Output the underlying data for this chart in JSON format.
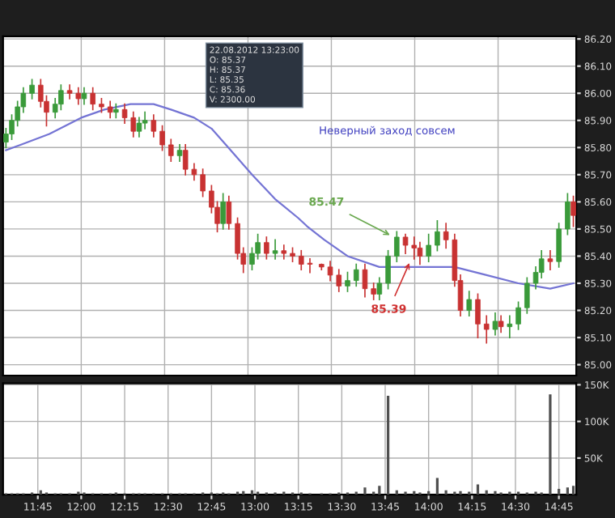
{
  "chart_data": [
    {
      "type": "candlestick",
      "x": [
        "2012-08-22T11:34",
        "2012-08-22T11:36",
        "2012-08-22T11:38",
        "2012-08-22T11:40",
        "2012-08-22T11:43",
        "2012-08-22T11:46",
        "2012-08-22T11:48",
        "2012-08-22T11:51",
        "2012-08-22T11:53",
        "2012-08-22T11:56",
        "2012-08-22T11:59",
        "2012-08-22T12:01",
        "2012-08-22T12:04",
        "2012-08-22T12:07",
        "2012-08-22T12:10",
        "2012-08-22T12:12",
        "2012-08-22T12:15",
        "2012-08-22T12:18",
        "2012-08-22T12:20",
        "2012-08-22T12:22",
        "2012-08-22T12:25",
        "2012-08-22T12:28",
        "2012-08-22T12:31",
        "2012-08-22T12:34",
        "2012-08-22T12:36",
        "2012-08-22T12:39",
        "2012-08-22T12:42",
        "2012-08-22T12:45",
        "2012-08-22T12:47",
        "2012-08-22T12:49",
        "2012-08-22T12:51",
        "2012-08-22T12:54",
        "2012-08-22T12:56",
        "2012-08-22T12:59",
        "2012-08-22T13:01",
        "2012-08-22T13:04",
        "2012-08-22T13:07",
        "2012-08-22T13:10",
        "2012-08-22T13:13",
        "2012-08-22T13:16",
        "2012-08-22T13:19",
        "2012-08-22T13:23",
        "2012-08-22T13:26",
        "2012-08-22T13:29",
        "2012-08-22T13:32",
        "2012-08-22T13:35",
        "2012-08-22T13:38",
        "2012-08-22T13:41",
        "2012-08-22T13:43",
        "2012-08-22T13:46",
        "2012-08-22T13:49",
        "2012-08-22T13:52",
        "2012-08-22T13:55",
        "2012-08-22T13:57",
        "2012-08-22T14:00",
        "2012-08-22T14:03",
        "2012-08-22T14:06",
        "2012-08-22T14:09",
        "2012-08-22T14:11",
        "2012-08-22T14:14",
        "2012-08-22T14:17",
        "2012-08-22T14:20",
        "2012-08-22T14:23",
        "2012-08-22T14:25",
        "2012-08-22T14:28",
        "2012-08-22T14:31",
        "2012-08-22T14:34",
        "2012-08-22T14:37",
        "2012-08-22T14:39",
        "2012-08-22T14:42",
        "2012-08-22T14:45",
        "2012-08-22T14:48",
        "2012-08-22T14:50"
      ],
      "ohlc": [
        [
          85.82,
          85.87,
          85.8,
          85.85
        ],
        [
          85.85,
          85.92,
          85.83,
          85.9
        ],
        [
          85.9,
          85.97,
          85.88,
          85.95
        ],
        [
          85.95,
          86.02,
          85.93,
          86.0
        ],
        [
          86.0,
          86.05,
          85.98,
          86.03
        ],
        [
          86.03,
          86.05,
          85.95,
          85.97
        ],
        [
          85.97,
          85.99,
          85.88,
          85.93
        ],
        [
          85.93,
          85.98,
          85.91,
          85.96
        ],
        [
          85.96,
          86.03,
          85.94,
          86.01
        ],
        [
          86.01,
          86.03,
          85.98,
          86.0
        ],
        [
          86.0,
          86.02,
          85.96,
          85.98
        ],
        [
          85.98,
          86.02,
          85.96,
          86.0
        ],
        [
          86.0,
          86.02,
          85.94,
          85.96
        ],
        [
          85.96,
          85.98,
          85.93,
          85.95
        ],
        [
          85.95,
          85.97,
          85.91,
          85.93
        ],
        [
          85.93,
          85.96,
          85.91,
          85.94
        ],
        [
          85.94,
          85.96,
          85.89,
          85.91
        ],
        [
          85.91,
          85.93,
          85.84,
          85.86
        ],
        [
          85.86,
          85.91,
          85.84,
          85.89
        ],
        [
          85.89,
          85.93,
          85.87,
          85.9
        ],
        [
          85.9,
          85.92,
          85.84,
          85.86
        ],
        [
          85.86,
          85.88,
          85.79,
          85.81
        ],
        [
          85.81,
          85.83,
          85.75,
          85.77
        ],
        [
          85.77,
          85.81,
          85.75,
          85.79
        ],
        [
          85.79,
          85.81,
          85.7,
          85.72
        ],
        [
          85.72,
          85.74,
          85.68,
          85.7
        ],
        [
          85.7,
          85.72,
          85.62,
          85.64
        ],
        [
          85.64,
          85.66,
          85.56,
          85.58
        ],
        [
          85.58,
          85.6,
          85.49,
          85.52
        ],
        [
          85.52,
          85.63,
          85.5,
          85.6
        ],
        [
          85.6,
          85.62,
          85.5,
          85.52
        ],
        [
          85.52,
          85.54,
          85.39,
          85.41
        ],
        [
          85.41,
          85.43,
          85.34,
          85.37
        ],
        [
          85.37,
          85.43,
          85.35,
          85.41
        ],
        [
          85.41,
          85.48,
          85.39,
          85.45
        ],
        [
          85.45,
          85.47,
          85.39,
          85.41
        ],
        [
          85.41,
          85.46,
          85.39,
          85.42
        ],
        [
          85.42,
          85.44,
          85.39,
          85.41
        ],
        [
          85.41,
          85.43,
          85.38,
          85.4
        ],
        [
          85.4,
          85.42,
          85.35,
          85.37
        ],
        [
          85.37,
          85.39,
          85.34,
          85.37
        ],
        [
          85.37,
          85.37,
          85.35,
          85.36
        ],
        [
          85.36,
          85.38,
          85.31,
          85.33
        ],
        [
          85.33,
          85.35,
          85.27,
          85.29
        ],
        [
          85.29,
          85.34,
          85.27,
          85.31
        ],
        [
          85.31,
          85.37,
          85.29,
          85.35
        ],
        [
          85.35,
          85.37,
          85.25,
          85.28
        ],
        [
          85.28,
          85.3,
          85.24,
          85.26
        ],
        [
          85.26,
          85.32,
          85.24,
          85.3
        ],
        [
          85.3,
          85.42,
          85.28,
          85.4
        ],
        [
          85.4,
          85.49,
          85.38,
          85.47
        ],
        [
          85.47,
          85.48,
          85.41,
          85.44
        ],
        [
          85.44,
          85.47,
          85.39,
          85.43
        ],
        [
          85.43,
          85.45,
          85.37,
          85.4
        ],
        [
          85.4,
          85.48,
          85.38,
          85.44
        ],
        [
          85.44,
          85.53,
          85.42,
          85.49
        ],
        [
          85.49,
          85.52,
          85.43,
          85.46
        ],
        [
          85.46,
          85.48,
          85.29,
          85.31
        ],
        [
          85.31,
          85.33,
          85.18,
          85.2
        ],
        [
          85.2,
          85.27,
          85.18,
          85.24
        ],
        [
          85.24,
          85.26,
          85.1,
          85.15
        ],
        [
          85.15,
          85.18,
          85.08,
          85.13
        ],
        [
          85.13,
          85.19,
          85.11,
          85.16
        ],
        [
          85.16,
          85.18,
          85.12,
          85.14
        ],
        [
          85.14,
          85.18,
          85.1,
          85.15
        ],
        [
          85.15,
          85.23,
          85.13,
          85.21
        ],
        [
          85.21,
          85.32,
          85.19,
          85.3
        ],
        [
          85.3,
          85.36,
          85.28,
          85.34
        ],
        [
          85.34,
          85.42,
          85.32,
          85.39
        ],
        [
          85.39,
          85.42,
          85.35,
          85.38
        ],
        [
          85.38,
          85.52,
          85.36,
          85.5
        ],
        [
          85.5,
          85.63,
          85.48,
          85.6
        ],
        [
          85.6,
          85.62,
          85.51,
          85.55
        ]
      ],
      "colors": [
        "#3a9a3a",
        "#3a9a3a",
        "#3a9a3a",
        "#3a9a3a",
        "#3a9a3a",
        "#c83232",
        "#c83232",
        "#3a9a3a",
        "#3a9a3a",
        "#c83232",
        "#c83232",
        "#3a9a3a",
        "#c83232",
        "#c83232",
        "#c83232",
        "#3a9a3a",
        "#c83232",
        "#c83232",
        "#3a9a3a",
        "#3a9a3a",
        "#c83232",
        "#c83232",
        "#c83232",
        "#3a9a3a",
        "#c83232",
        "#c83232",
        "#c83232",
        "#c83232",
        "#c83232",
        "#3a9a3a",
        "#c83232",
        "#c83232",
        "#c83232",
        "#3a9a3a",
        "#3a9a3a",
        "#c83232",
        "#3a9a3a",
        "#c83232",
        "#c83232",
        "#c83232",
        "#c83232",
        "#c83232",
        "#c83232",
        "#c83232",
        "#3a9a3a",
        "#3a9a3a",
        "#c83232",
        "#c83232",
        "#3a9a3a",
        "#3a9a3a",
        "#3a9a3a",
        "#c83232",
        "#c83232",
        "#c83232",
        "#3a9a3a",
        "#3a9a3a",
        "#c83232",
        "#c83232",
        "#c83232",
        "#3a9a3a",
        "#c83232",
        "#c83232",
        "#3a9a3a",
        "#c83232",
        "#3a9a3a",
        "#3a9a3a",
        "#3a9a3a",
        "#3a9a3a",
        "#3a9a3a",
        "#c83232",
        "#3a9a3a",
        "#3a9a3a",
        "#c83232"
      ],
      "series": [
        {
          "type": "line",
          "color": "#7474d4",
          "x": [
            "2012-08-22T11:34",
            "2012-08-22T11:39",
            "2012-08-22T11:49",
            "2012-08-22T12:00",
            "2012-08-22T12:08",
            "2012-08-22T12:17",
            "2012-08-22T12:25",
            "2012-08-22T12:31",
            "2012-08-22T12:39",
            "2012-08-22T12:45",
            "2012-08-22T12:50",
            "2012-08-22T12:59",
            "2012-08-22T13:07",
            "2012-08-22T13:15",
            "2012-08-22T13:18",
            "2012-08-22T13:24",
            "2012-08-22T13:32",
            "2012-08-22T13:43",
            "2012-08-22T13:55",
            "2012-08-22T14:09",
            "2012-08-22T14:20",
            "2012-08-22T14:31",
            "2012-08-22T14:42",
            "2012-08-22T14:50"
          ],
          "values": [
            85.79,
            85.81,
            85.85,
            85.91,
            85.94,
            85.96,
            85.96,
            85.94,
            85.91,
            85.87,
            85.81,
            85.7,
            85.61,
            85.54,
            85.51,
            85.46,
            85.4,
            85.36,
            85.36,
            85.36,
            85.33,
            85.3,
            85.28,
            85.3
          ]
        }
      ],
      "xlim": [
        "2012-08-22T11:33",
        "2012-08-22T14:51"
      ],
      "ylim": [
        84.96,
        86.21
      ],
      "yticks": [
        {
          "value": 85.0,
          "label": "85.00"
        },
        {
          "value": 85.1,
          "label": "85.10"
        },
        {
          "value": 85.2,
          "label": "85.20"
        },
        {
          "value": 85.3,
          "label": "85.30"
        },
        {
          "value": 85.4,
          "label": "85.40"
        },
        {
          "value": 85.5,
          "label": "85.50"
        },
        {
          "value": 85.6,
          "label": "85.60"
        },
        {
          "value": 85.7,
          "label": "85.70"
        },
        {
          "value": 85.8,
          "label": "85.80"
        },
        {
          "value": 85.9,
          "label": "85.90"
        },
        {
          "value": 86.0,
          "label": "86.00"
        },
        {
          "value": 86.1,
          "label": "86.10"
        },
        {
          "value": 86.2,
          "label": "86.20"
        }
      ],
      "tick_labels": "y",
      "grid": true,
      "annotations": [
        "22.08.2012 13:23:00",
        "O: 85.37",
        "H: 85.37",
        "L: 85.35",
        "C: 85.36",
        "V: 2300.00",
        {
          "text": "85.47",
          "x": "2012-08-22T13:48",
          "y": 85.47
        },
        {
          "text": "85.39",
          "x": "2012-08-22T13:54",
          "y": 85.39
        },
        "Неверный заход совсем"
      ]
    },
    {
      "type": "bar",
      "x": [
        "2012-08-22T11:34",
        "2012-08-22T11:36",
        "2012-08-22T11:38",
        "2012-08-22T11:40",
        "2012-08-22T11:43",
        "2012-08-22T11:46",
        "2012-08-22T11:48",
        "2012-08-22T11:51",
        "2012-08-22T11:53",
        "2012-08-22T11:56",
        "2012-08-22T11:59",
        "2012-08-22T12:01",
        "2012-08-22T12:04",
        "2012-08-22T12:07",
        "2012-08-22T12:10",
        "2012-08-22T12:12",
        "2012-08-22T12:15",
        "2012-08-22T12:18",
        "2012-08-22T12:20",
        "2012-08-22T12:22",
        "2012-08-22T12:25",
        "2012-08-22T12:28",
        "2012-08-22T12:31",
        "2012-08-22T12:34",
        "2012-08-22T12:36",
        "2012-08-22T12:39",
        "2012-08-22T12:42",
        "2012-08-22T12:45",
        "2012-08-22T12:47",
        "2012-08-22T12:49",
        "2012-08-22T12:51",
        "2012-08-22T12:54",
        "2012-08-22T12:56",
        "2012-08-22T12:59",
        "2012-08-22T13:01",
        "2012-08-22T13:04",
        "2012-08-22T13:07",
        "2012-08-22T13:10",
        "2012-08-22T13:13",
        "2012-08-22T13:16",
        "2012-08-22T13:19",
        "2012-08-22T13:23",
        "2012-08-22T13:26",
        "2012-08-22T13:29",
        "2012-08-22T13:32",
        "2012-08-22T13:35",
        "2012-08-22T13:38",
        "2012-08-22T13:41",
        "2012-08-22T13:43",
        "2012-08-22T13:46",
        "2012-08-22T13:49",
        "2012-08-22T13:52",
        "2012-08-22T13:55",
        "2012-08-22T13:57",
        "2012-08-22T14:00",
        "2012-08-22T14:03",
        "2012-08-22T14:06",
        "2012-08-22T14:09",
        "2012-08-22T14:11",
        "2012-08-22T14:14",
        "2012-08-22T14:17",
        "2012-08-22T14:20",
        "2012-08-22T14:23",
        "2012-08-22T14:25",
        "2012-08-22T14:28",
        "2012-08-22T14:31",
        "2012-08-22T14:34",
        "2012-08-22T14:37",
        "2012-08-22T14:39",
        "2012-08-22T14:42",
        "2012-08-22T14:45",
        "2012-08-22T14:48",
        "2012-08-22T14:50"
      ],
      "values": [
        2,
        2,
        2,
        2,
        3,
        6,
        3,
        2,
        2,
        2,
        4,
        3,
        2,
        2,
        2,
        3,
        2,
        2,
        2,
        2,
        2,
        2,
        2,
        2,
        2,
        2,
        3,
        3,
        2,
        3,
        2,
        4,
        5,
        6,
        4,
        3,
        3,
        4,
        3,
        3,
        2,
        2,
        2,
        3,
        3,
        4,
        10,
        4,
        12,
        135,
        6,
        4,
        5,
        3,
        5,
        23,
        6,
        4,
        5,
        4,
        14,
        6,
        5,
        3,
        4,
        4,
        3,
        4,
        3,
        137,
        8,
        10,
        12
      ],
      "color": "#505050",
      "xlim": [
        "2012-08-22T11:33",
        "2012-08-22T14:51"
      ],
      "xticks": [
        {
          "value": "2012-08-22T11:45",
          "label": "11:45"
        },
        {
          "value": "2012-08-22T12:00",
          "label": "12:00"
        },
        {
          "value": "2012-08-22T12:15",
          "label": "12:15"
        },
        {
          "value": "2012-08-22T12:30",
          "label": "12:30"
        },
        {
          "value": "2012-08-22T12:45",
          "label": "12:45"
        },
        {
          "value": "2012-08-22T13:00",
          "label": "13:00"
        },
        {
          "value": "2012-08-22T13:15",
          "label": "13:15"
        },
        {
          "value": "2012-08-22T13:30",
          "label": "13:30"
        },
        {
          "value": "2012-08-22T13:45",
          "label": "13:45"
        },
        {
          "value": "2012-08-22T14:00",
          "label": "14:00"
        },
        {
          "value": "2012-08-22T14:15",
          "label": "14:15"
        },
        {
          "value": "2012-08-22T14:30",
          "label": "14:30"
        },
        {
          "value": "2012-08-22T14:45",
          "label": "14:45"
        }
      ],
      "ylim": [
        0,
        152
      ],
      "yticks": [
        {
          "value": 50,
          "label": "50K"
        },
        {
          "value": 100,
          "label": "100K"
        },
        {
          "value": 150,
          "label": "150K"
        }
      ],
      "grid": true
    }
  ]
}
